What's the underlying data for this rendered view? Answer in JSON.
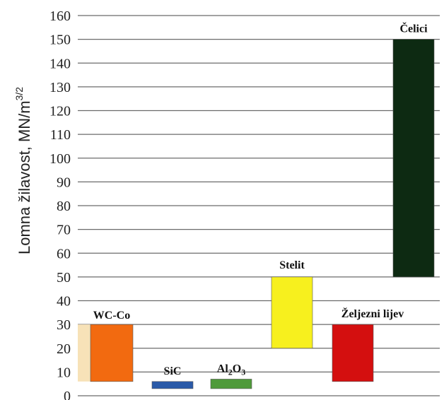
{
  "chart_data": {
    "type": "bar",
    "subtype": "floating-range",
    "title": "",
    "xlabel": "",
    "ylabel": "Lomna žilavost, MN/m",
    "ylabel_superscript": "3/2",
    "ylim": [
      0,
      160
    ],
    "yticks": [
      0,
      10,
      20,
      30,
      40,
      50,
      60,
      70,
      80,
      90,
      100,
      110,
      120,
      130,
      140,
      150,
      160
    ],
    "grid": "horizontal",
    "legend": "none",
    "bars": [
      {
        "name": "WC-Co",
        "low": 6,
        "high": 30,
        "color": "#f26a10"
      },
      {
        "name": "SiC",
        "low": 3,
        "high": 6,
        "color": "#2a5aa8"
      },
      {
        "name": "Al2O3",
        "low": 3,
        "high": 7,
        "color": "#4f9a3a"
      },
      {
        "name": "Stelit",
        "low": 20,
        "high": 50,
        "color": "#f7f01e"
      },
      {
        "name": "Željezni lijev",
        "low": 6,
        "high": 30,
        "color": "#d40f0f"
      },
      {
        "name": "Čelici",
        "low": 50,
        "high": 150,
        "color": "#0d2a12"
      }
    ],
    "background_band": {
      "low": 6,
      "high": 30,
      "color": "#f7e2b8"
    }
  }
}
